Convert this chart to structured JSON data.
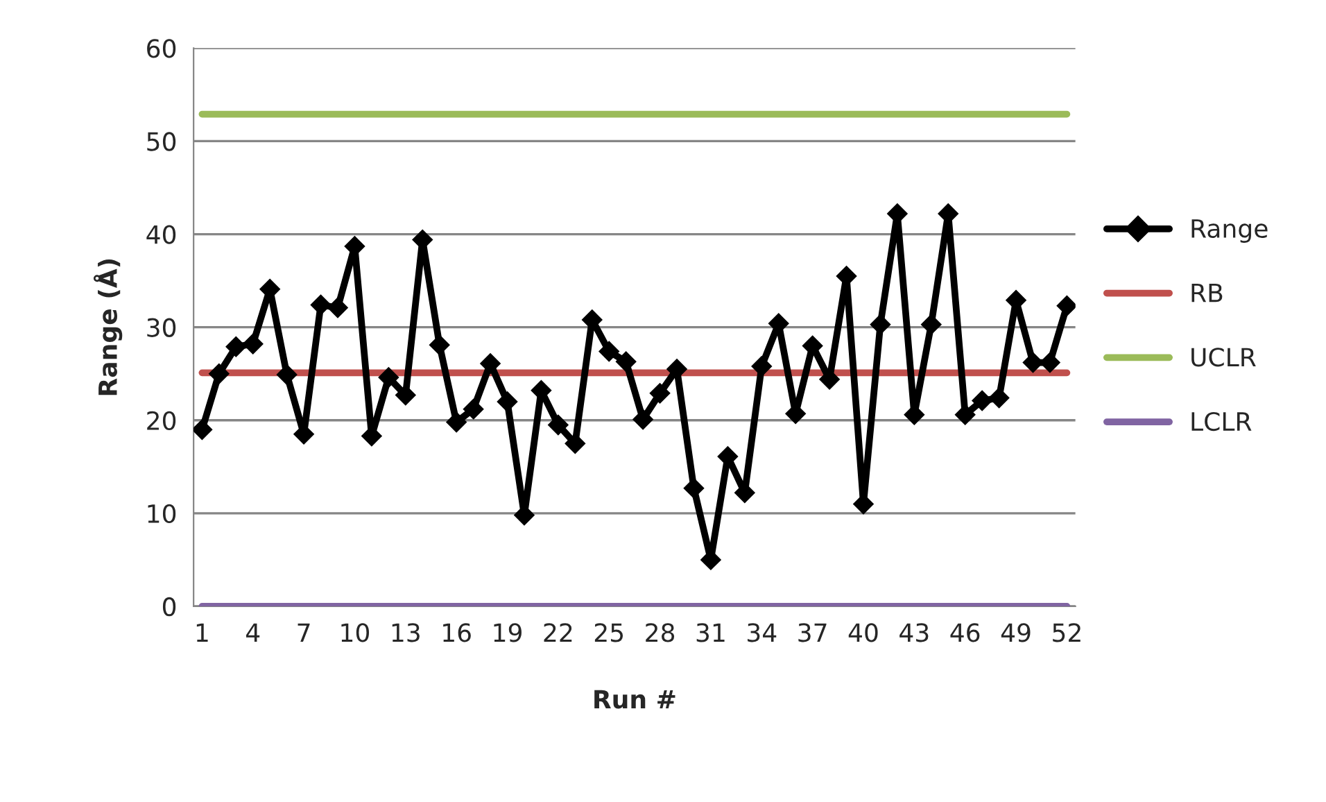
{
  "chart_data": {
    "type": "line",
    "xlabel": "Run #",
    "ylabel": "Range (Å)",
    "categories": [
      "1",
      null,
      null,
      "4",
      null,
      null,
      "7",
      null,
      null,
      "10",
      null,
      null,
      "13",
      null,
      null,
      "16",
      null,
      null,
      "19",
      null,
      null,
      "22",
      null,
      null,
      "25",
      null,
      null,
      "28",
      null,
      null,
      "31",
      null,
      null,
      "34",
      null,
      null,
      "37",
      null,
      null,
      "40",
      null,
      null,
      "43",
      null,
      null,
      "46",
      null,
      null,
      "49",
      null,
      null,
      "52"
    ],
    "series": [
      {
        "name": "Range",
        "color": "#000000",
        "marker": "diamond",
        "values": [
          19,
          25,
          27.9,
          28.2,
          34.1,
          24.9,
          18.5,
          32.4,
          32.1,
          38.7,
          18.3,
          24.6,
          22.7,
          39.4,
          28.1,
          19.8,
          21.2,
          26.1,
          22,
          9.8,
          23.2,
          19.5,
          17.5,
          30.8,
          27.4,
          26.3,
          20.1,
          22.9,
          25.5,
          12.7,
          5,
          16.1,
          12.2,
          25.8,
          30.4,
          20.7,
          28,
          24.4,
          35.5,
          11,
          30.3,
          42.2,
          20.6,
          30.3,
          42.2,
          20.6,
          22.1,
          22.4,
          32.9,
          26.2,
          26.2,
          32.3
        ]
      },
      {
        "name": "RB",
        "color": "#c0504d",
        "marker": "none",
        "values": [
          25.1,
          25.1,
          25.1,
          25.1,
          25.1,
          25.1,
          25.1,
          25.1,
          25.1,
          25.1,
          25.1,
          25.1,
          25.1,
          25.1,
          25.1,
          25.1,
          25.1,
          25.1,
          25.1,
          25.1,
          25.1,
          25.1,
          25.1,
          25.1,
          25.1,
          25.1,
          25.1,
          25.1,
          25.1,
          25.1,
          25.1,
          25.1,
          25.1,
          25.1,
          25.1,
          25.1,
          25.1,
          25.1,
          25.1,
          25.1,
          25.1,
          25.1,
          25.1,
          25.1,
          25.1,
          25.1,
          25.1,
          25.1,
          25.1,
          25.1,
          25.1,
          25.1
        ]
      },
      {
        "name": "UCLR",
        "color": "#9bbb59",
        "marker": "none",
        "values": [
          52.9,
          52.9,
          52.9,
          52.9,
          52.9,
          52.9,
          52.9,
          52.9,
          52.9,
          52.9,
          52.9,
          52.9,
          52.9,
          52.9,
          52.9,
          52.9,
          52.9,
          52.9,
          52.9,
          52.9,
          52.9,
          52.9,
          52.9,
          52.9,
          52.9,
          52.9,
          52.9,
          52.9,
          52.9,
          52.9,
          52.9,
          52.9,
          52.9,
          52.9,
          52.9,
          52.9,
          52.9,
          52.9,
          52.9,
          52.9,
          52.9,
          52.9,
          52.9,
          52.9,
          52.9,
          52.9,
          52.9,
          52.9,
          52.9,
          52.9,
          52.9,
          52.9
        ]
      },
      {
        "name": "LCLR",
        "color": "#8064a2",
        "marker": "none",
        "values": [
          0,
          0,
          0,
          0,
          0,
          0,
          0,
          0,
          0,
          0,
          0,
          0,
          0,
          0,
          0,
          0,
          0,
          0,
          0,
          0,
          0,
          0,
          0,
          0,
          0,
          0,
          0,
          0,
          0,
          0,
          0,
          0,
          0,
          0,
          0,
          0,
          0,
          0,
          0,
          0,
          0,
          0,
          0,
          0,
          0,
          0,
          0,
          0,
          0,
          0,
          0,
          0
        ]
      }
    ],
    "ylim": [
      0,
      60
    ],
    "yticks": [
      0,
      10,
      20,
      30,
      40,
      50,
      60
    ],
    "grid": "y",
    "legend": "right",
    "line_style": "solid"
  }
}
